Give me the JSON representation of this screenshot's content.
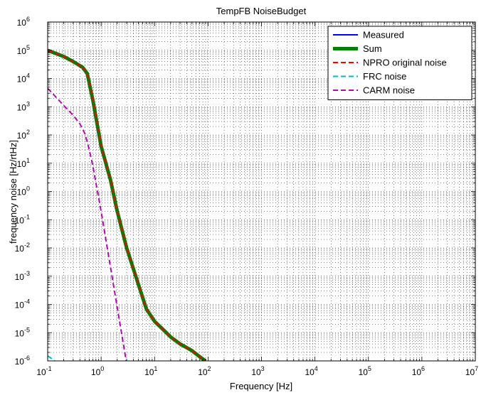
{
  "chart_data": {
    "type": "line",
    "title": "TempFB NoiseBudget",
    "xlabel": "Frequency [Hz]",
    "ylabel": "frequency noise [Hz/rtHz]",
    "xscale": "log",
    "yscale": "log",
    "xlim": [
      0.1,
      10000000
    ],
    "ylim": [
      1e-06,
      1000000
    ],
    "grid": true,
    "legend_position": "top-right",
    "x_ticks": [
      {
        "base": "10",
        "exp": "-1"
      },
      {
        "base": "10",
        "exp": "0"
      },
      {
        "base": "10",
        "exp": "1"
      },
      {
        "base": "10",
        "exp": "2"
      },
      {
        "base": "10",
        "exp": "3"
      },
      {
        "base": "10",
        "exp": "4"
      },
      {
        "base": "10",
        "exp": "5"
      },
      {
        "base": "10",
        "exp": "6"
      },
      {
        "base": "10",
        "exp": "7"
      }
    ],
    "y_ticks": [
      {
        "base": "10",
        "exp": "-6"
      },
      {
        "base": "10",
        "exp": "-5"
      },
      {
        "base": "10",
        "exp": "-4"
      },
      {
        "base": "10",
        "exp": "-3"
      },
      {
        "base": "10",
        "exp": "-2"
      },
      {
        "base": "10",
        "exp": "-1"
      },
      {
        "base": "10",
        "exp": "0"
      },
      {
        "base": "10",
        "exp": "1"
      },
      {
        "base": "10",
        "exp": "2"
      },
      {
        "base": "10",
        "exp": "3"
      },
      {
        "base": "10",
        "exp": "4"
      },
      {
        "base": "10",
        "exp": "5"
      },
      {
        "base": "10",
        "exp": "6"
      }
    ],
    "series": [
      {
        "name": "Measured",
        "color": "#0000ff",
        "style": "solid",
        "width": 2,
        "x": [],
        "y": []
      },
      {
        "name": "Sum",
        "color": "#008000",
        "style": "solid",
        "width": 5,
        "x": [
          0.1,
          0.2,
          0.3,
          0.45,
          0.55,
          0.7,
          1.0,
          1.5,
          2.0,
          3.0,
          5.0,
          7.0,
          10,
          15,
          20,
          30,
          50,
          70,
          90
        ],
        "y": [
          100000,
          60000,
          40000,
          25000,
          15000,
          1700,
          40,
          2.5,
          0.2,
          0.01,
          0.0005,
          7e-05,
          2.5e-05,
          1.2e-05,
          7e-06,
          4e-06,
          2.3e-06,
          1.4e-06,
          1e-06
        ]
      },
      {
        "name": "NPRO original noise",
        "color": "#ff0000",
        "style": "dashed",
        "width": 2,
        "x": [
          0.1,
          0.2,
          0.3,
          0.45,
          0.55,
          0.7,
          1.0,
          1.5,
          2.0,
          3.0,
          5.0,
          7.0,
          10,
          15,
          20,
          30,
          50,
          70,
          90
        ],
        "y": [
          100000,
          60000,
          40000,
          25000,
          15000,
          1700,
          40,
          2.5,
          0.2,
          0.01,
          0.0005,
          7e-05,
          2.5e-05,
          1.2e-05,
          7e-06,
          4e-06,
          2.3e-06,
          1.4e-06,
          1e-06
        ]
      },
      {
        "name": "FRC noise",
        "color": "#00bfbf",
        "style": "dashed",
        "width": 2,
        "x": [
          0.1,
          0.12,
          0.135
        ],
        "y": [
          1.5e-06,
          1.2e-06,
          1e-06
        ]
      },
      {
        "name": "CARM noise",
        "color": "#bf00bf",
        "style": "dashed",
        "width": 2,
        "x": [
          0.1,
          0.15,
          0.2,
          0.3,
          0.4,
          0.5,
          0.6,
          0.7,
          0.8,
          1.0,
          1.5,
          2.0,
          3.0,
          4.0,
          4.6
        ],
        "y": [
          4500,
          2000,
          1100,
          500,
          250,
          110,
          30,
          8,
          2,
          0.2,
          0.002,
          8e-05,
          8e-07,
          2e-08,
          1e-06
        ]
      }
    ]
  }
}
